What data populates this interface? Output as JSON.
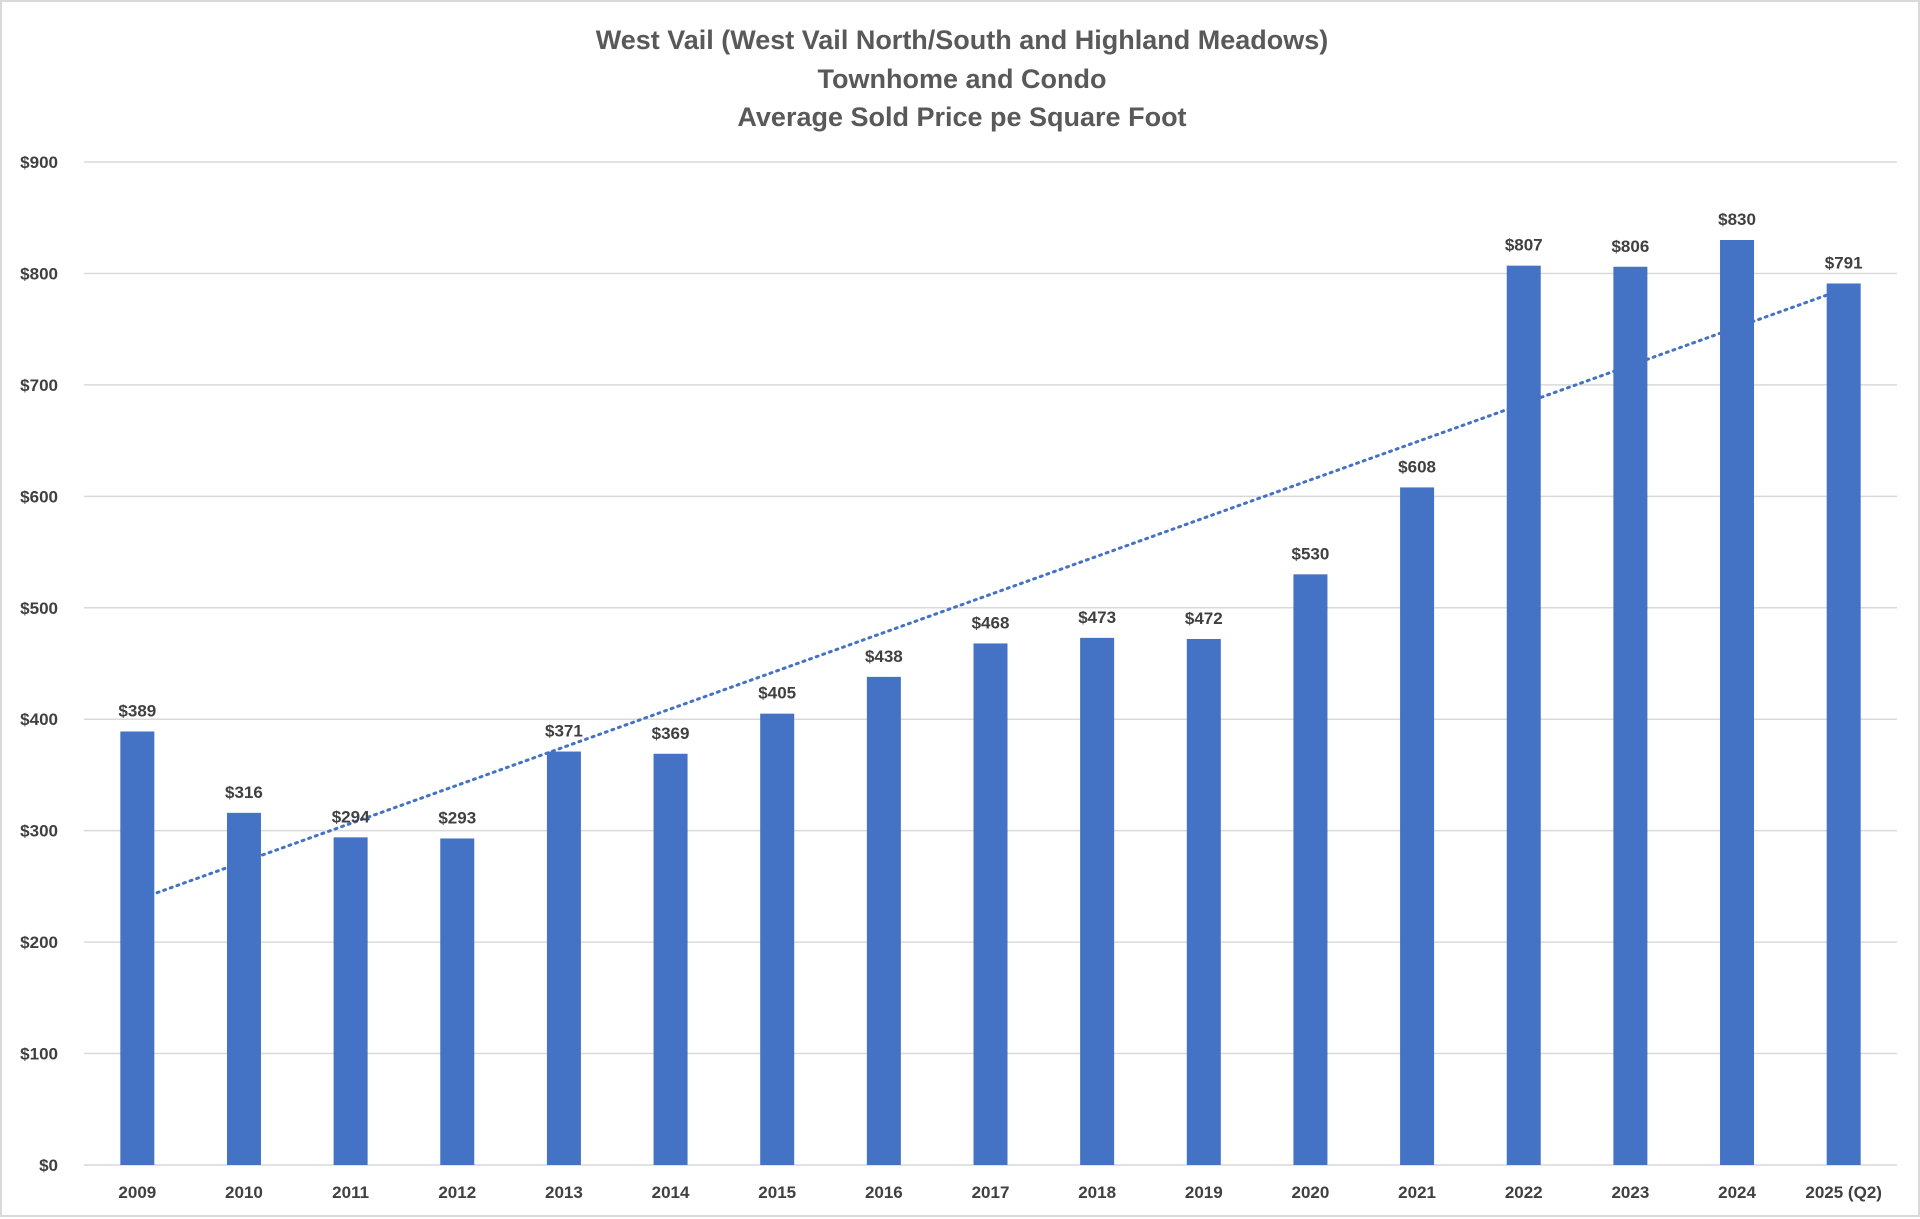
{
  "chart_data": {
    "type": "bar",
    "title": [
      "West Vail (West Vail North/South and Highland Meadows)",
      "Townhome and Condo",
      "Average Sold Price pe Square Foot"
    ],
    "xlabel": "",
    "ylabel": "",
    "categories": [
      "2009",
      "2010",
      "2011",
      "2012",
      "2013",
      "2014",
      "2015",
      "2016",
      "2017",
      "2018",
      "2019",
      "2020",
      "2021",
      "2022",
      "2023",
      "2024",
      "2025 (Q2)"
    ],
    "values": [
      389,
      316,
      294,
      293,
      371,
      369,
      405,
      438,
      468,
      473,
      472,
      530,
      608,
      807,
      806,
      830,
      791
    ],
    "data_labels": [
      "$389",
      "$316",
      "$294",
      "$293",
      "$371",
      "$369",
      "$405",
      "$438",
      "$468",
      "$473",
      "$472",
      "$530",
      "$608",
      "$807",
      "$806",
      "$830",
      "$791"
    ],
    "ylim": [
      0,
      900
    ],
    "yticks": [
      0,
      100,
      200,
      300,
      400,
      500,
      600,
      700,
      800,
      900
    ],
    "ytick_labels": [
      "$0",
      "$100",
      "$200",
      "$300",
      "$400",
      "$500",
      "$600",
      "$700",
      "$800",
      "$900"
    ],
    "grid": true,
    "trendline": {
      "type": "linear",
      "style": "dotted",
      "start_value": 238,
      "end_value": 786
    },
    "colors": {
      "bar": "#4472C4",
      "trendline": "#4472C4",
      "grid": "#d9d9d9"
    }
  }
}
